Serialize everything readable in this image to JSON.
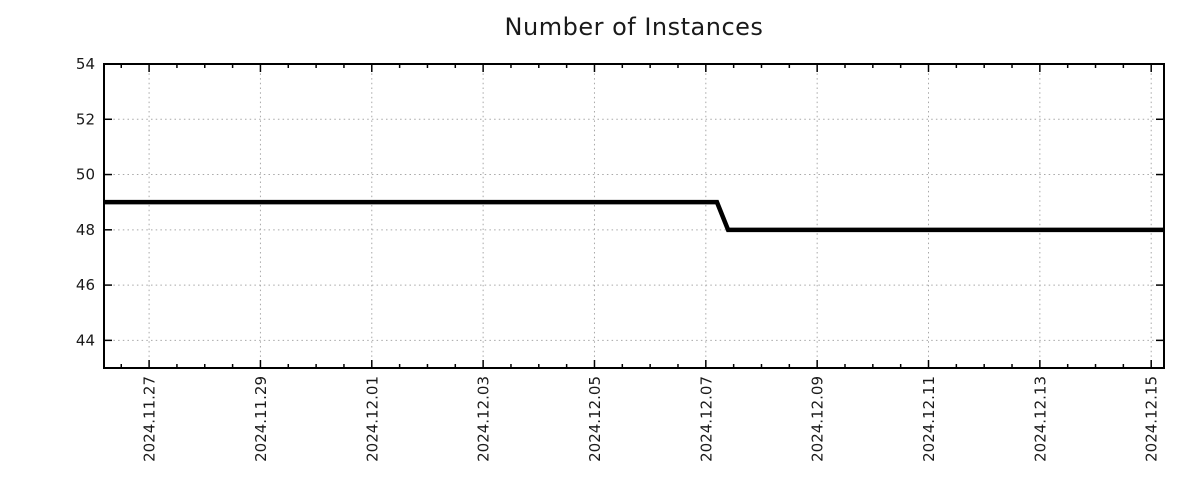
{
  "chart_data": {
    "type": "line",
    "title": "Number of Instances",
    "xlabel": "",
    "ylabel": "",
    "x_axis": {
      "tick_labels": [
        "2024.11.27",
        "2024.11.29",
        "2024.12.01",
        "2024.12.03",
        "2024.12.05",
        "2024.12.07",
        "2024.12.09",
        "2024.12.11",
        "2024.12.13",
        "2024.12.15"
      ],
      "tick_positions_days": [
        0,
        2,
        4,
        6,
        8,
        10,
        12,
        14,
        16,
        18
      ],
      "minor_tick_interval_days": 0.5,
      "xlim_days": [
        -0.81,
        18.23
      ],
      "label_rotation_deg": -90
    },
    "y_axis": {
      "tick_labels": [
        "54",
        "52",
        "50",
        "48",
        "46",
        "44"
      ],
      "tick_values": [
        54,
        52,
        50,
        48,
        46,
        44
      ],
      "ylim": [
        43,
        54
      ]
    },
    "grid": {
      "on": true,
      "style": "dotted",
      "color": "#a8a8a8"
    },
    "legend": {
      "visible": false
    },
    "series": [
      {
        "name": "instances",
        "color": "#000000",
        "line_width": 4.5,
        "points": [
          {
            "x_days": -0.81,
            "y": 49
          },
          {
            "x_days": 10.2,
            "y": 49
          },
          {
            "x_days": 10.4,
            "y": 48
          },
          {
            "x_days": 18.23,
            "y": 48
          }
        ]
      }
    ],
    "colors": {
      "frame": "#000000",
      "text": "#1a1a1a",
      "background": "#ffffff"
    }
  }
}
